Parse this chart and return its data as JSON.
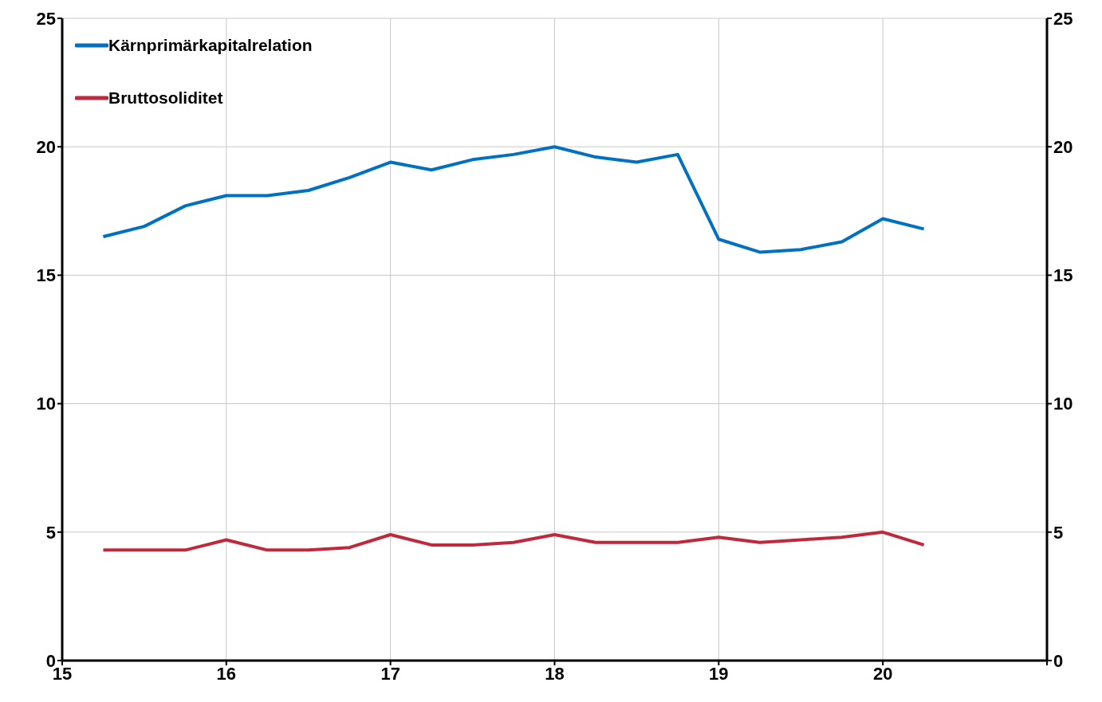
{
  "chart_data": {
    "type": "line",
    "x": [
      15.25,
      15.5,
      15.75,
      16,
      16.25,
      16.5,
      16.75,
      17,
      17.25,
      17.5,
      17.75,
      18,
      18.25,
      18.5,
      18.75,
      19,
      19.25,
      19.5,
      19.75,
      20,
      20.25
    ],
    "series": [
      {
        "name": "Kärnprimärkapitalrelation",
        "color": "#0070c0",
        "values": [
          16.5,
          16.9,
          17.7,
          18.1,
          18.1,
          18.3,
          18.8,
          19.4,
          19.1,
          19.5,
          19.7,
          20.0,
          19.6,
          19.4,
          19.7,
          16.4,
          15.9,
          16.0,
          16.3,
          17.2,
          16.8
        ]
      },
      {
        "name": "Bruttosoliditet",
        "color": "#c0283c",
        "values": [
          4.3,
          4.3,
          4.3,
          4.7,
          4.3,
          4.3,
          4.4,
          4.9,
          4.5,
          4.5,
          4.6,
          4.9,
          4.6,
          4.6,
          4.6,
          4.8,
          4.6,
          4.7,
          4.8,
          5.0,
          4.5
        ]
      }
    ],
    "xlim": [
      15,
      21
    ],
    "xticks": [
      15,
      16,
      17,
      18,
      19,
      20,
      {
        "value": 21,
        "label": null
      }
    ],
    "ylim": [
      0,
      25
    ],
    "yticks": [
      0,
      5,
      10,
      15,
      20,
      25
    ],
    "y2lim": [
      0,
      25
    ],
    "y2ticks": [
      0,
      5,
      10,
      15,
      20,
      25
    ],
    "grid": true,
    "legend": "top left",
    "marker": "none",
    "line_style": "solid"
  }
}
